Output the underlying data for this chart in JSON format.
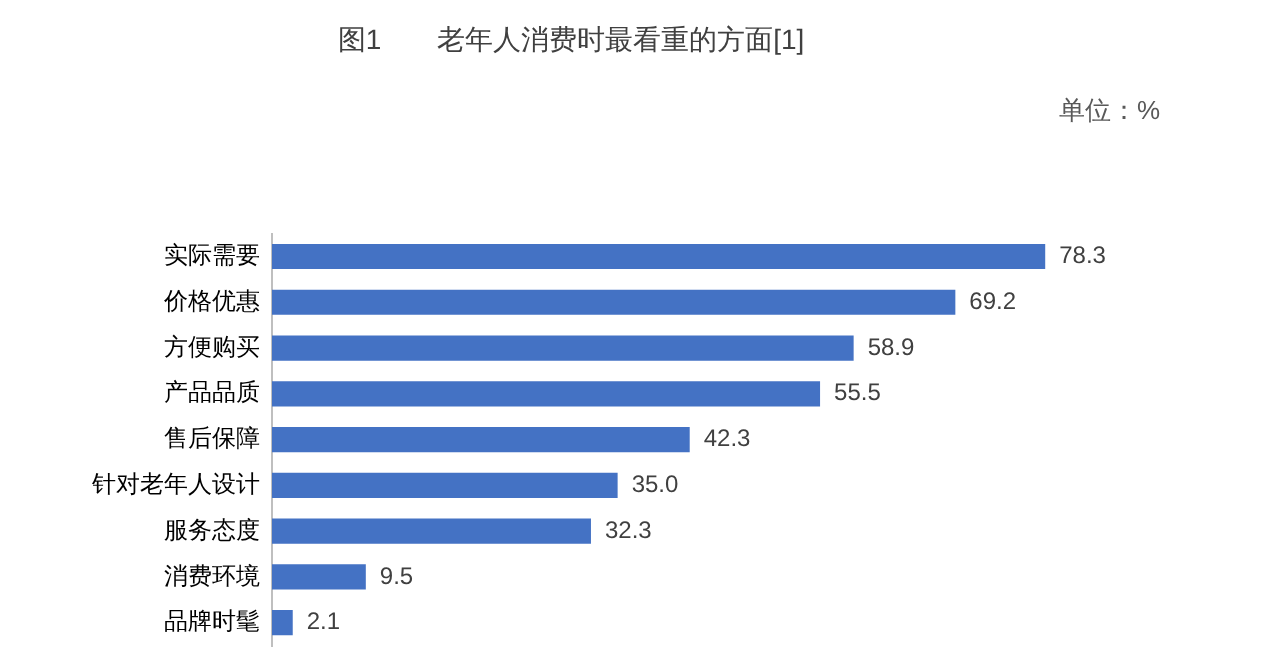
{
  "chart_data": {
    "type": "bar",
    "orientation": "horizontal",
    "title": "图1　　老年人消费时最看重的方面[1]",
    "annotations": [
      "单位：%"
    ],
    "categories": [
      "实际需要",
      "价格优惠",
      "方便购买",
      "产品品质",
      "售后保障",
      "针对老年人设计",
      "服务态度",
      "消费环境",
      "品牌时髦"
    ],
    "values": [
      78.3,
      69.2,
      58.9,
      55.5,
      42.3,
      35.0,
      32.3,
      9.5,
      2.1
    ],
    "value_labels": [
      "78.3",
      "69.2",
      "58.9",
      "55.5",
      "42.3",
      "35.0",
      "32.3",
      "9.5",
      "2.1"
    ],
    "color": "#4472c4",
    "legend": false
  }
}
